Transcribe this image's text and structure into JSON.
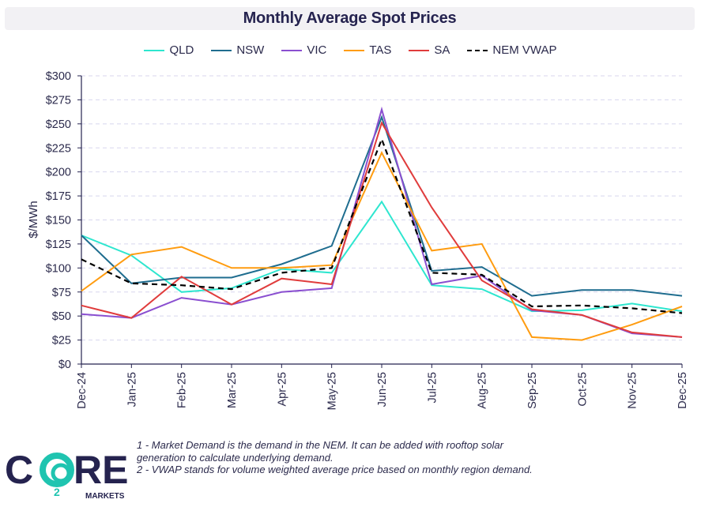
{
  "chart_data": {
    "type": "line",
    "title": "Monthly Average Spot Prices",
    "xlabel": "",
    "ylabel": "$/MWh",
    "ylim": [
      0,
      300
    ],
    "yticks": [
      0,
      25,
      50,
      75,
      100,
      125,
      150,
      175,
      200,
      225,
      250,
      275,
      300
    ],
    "ytick_labels": [
      "$0",
      "$25",
      "$50",
      "$75",
      "$100",
      "$125",
      "$150",
      "$175",
      "$200",
      "$225",
      "$250",
      "$275",
      "$300"
    ],
    "grid": true,
    "legend_position": "top-center",
    "categories": [
      "Dec-24",
      "Jan-25",
      "Feb-25",
      "Mar-25",
      "Apr-25",
      "May-25",
      "Jun-25",
      "Jul-25",
      "Aug-25",
      "Sep-25",
      "Oct-25",
      "Nov-25",
      "Dec-25"
    ],
    "series": [
      {
        "name": "QLD",
        "color": "#2ee6cf",
        "dashed": false,
        "values": [
          134,
          113,
          75,
          79,
          99,
          95,
          169,
          82,
          78,
          55,
          56,
          63,
          55
        ]
      },
      {
        "name": "NSW",
        "color": "#1f6d8f",
        "dashed": false,
        "values": [
          134,
          84,
          90,
          90,
          104,
          123,
          257,
          97,
          101,
          71,
          77,
          77,
          71
        ]
      },
      {
        "name": "VIC",
        "color": "#8a4fd0",
        "dashed": false,
        "values": [
          52,
          48,
          69,
          62,
          75,
          79,
          265,
          83,
          92,
          56,
          51,
          32,
          28
        ]
      },
      {
        "name": "TAS",
        "color": "#ff9c10",
        "dashed": false,
        "values": [
          76,
          114,
          122,
          100,
          100,
          103,
          220,
          118,
          125,
          28,
          25,
          41,
          60
        ]
      },
      {
        "name": "SA",
        "color": "#e03c3c",
        "dashed": false,
        "values": [
          61,
          48,
          91,
          62,
          89,
          83,
          251,
          163,
          87,
          57,
          51,
          33,
          28
        ]
      },
      {
        "name": "NEM VWAP",
        "color": "#000000",
        "dashed": true,
        "values": [
          109,
          84,
          82,
          78,
          95,
          100,
          234,
          95,
          93,
          60,
          61,
          58,
          53
        ]
      }
    ]
  },
  "footnotes": {
    "line1": "1 - Market Demand is the demand in the NEM. It can be added with rooftop solar",
    "line2": "generation to calculate underlying demand.",
    "line3": "2 - VWAP stands for volume weighted average price based on monthly region demand."
  },
  "logo": {
    "brand": "CORE",
    "subscript": "2",
    "tagline": "MARKETS",
    "primary_color": "#25234f",
    "accent_color": "#1fc4b0"
  }
}
